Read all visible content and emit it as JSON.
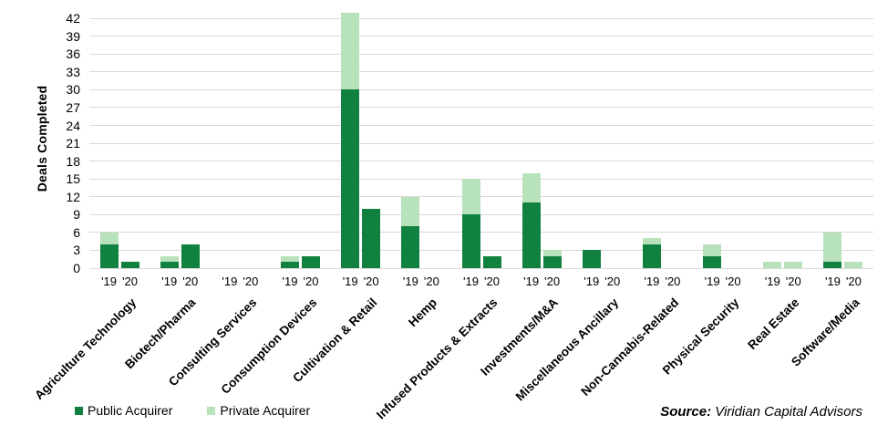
{
  "chart_data": {
    "type": "bar",
    "stacked": true,
    "title": "",
    "xlabel": "",
    "ylabel": "Deals Completed",
    "ylim": [
      0,
      42
    ],
    "ytick_step": 3,
    "grid": true,
    "legend_position": "bottom-left",
    "year_labels": [
      "'19",
      "'20"
    ],
    "categories": [
      "Agriculture Technology",
      "Biotech/Pharma",
      "Consulting Services",
      "Consumption Devices",
      "Cultivation & Retail",
      "Hemp",
      "Infused Products & Extracts",
      "Investments/M&A",
      "Miscellaneous Ancillary",
      "Non-Cannabis-Related",
      "Physical Security",
      "Real Estate",
      "Software/Media"
    ],
    "series": [
      {
        "name": "Public Acquirer",
        "year": "'19",
        "color": "#118140",
        "values": [
          4,
          1,
          0,
          1,
          30,
          7,
          9,
          11,
          3,
          4,
          2,
          0,
          1
        ]
      },
      {
        "name": "Private Acquirer",
        "year": "'19",
        "color": "#B7E2BC",
        "values": [
          2,
          1,
          0,
          1,
          13,
          5,
          6,
          5,
          0,
          1,
          2,
          1,
          5
        ]
      },
      {
        "name": "Public Acquirer",
        "year": "'20",
        "color": "#118140",
        "values": [
          1,
          4,
          0,
          2,
          10,
          0,
          2,
          2,
          0,
          0,
          0,
          0,
          0
        ]
      },
      {
        "name": "Private Acquirer",
        "year": "'20",
        "color": "#B7E2BC",
        "values": [
          0,
          0,
          0,
          0,
          0,
          0,
          0,
          1,
          0,
          0,
          0,
          1,
          1
        ]
      }
    ]
  },
  "legend": {
    "items": [
      {
        "label": "Public Acquirer",
        "color": "#118140"
      },
      {
        "label": "Private Acquirer",
        "color": "#B7E2BC"
      }
    ]
  },
  "source": {
    "label": "Source:",
    "text": " Viridian Capital Advisors"
  },
  "colors": {
    "public": "#118140",
    "private": "#B7E2BC",
    "gridline": "#D9D9D9",
    "text": "#000000"
  }
}
